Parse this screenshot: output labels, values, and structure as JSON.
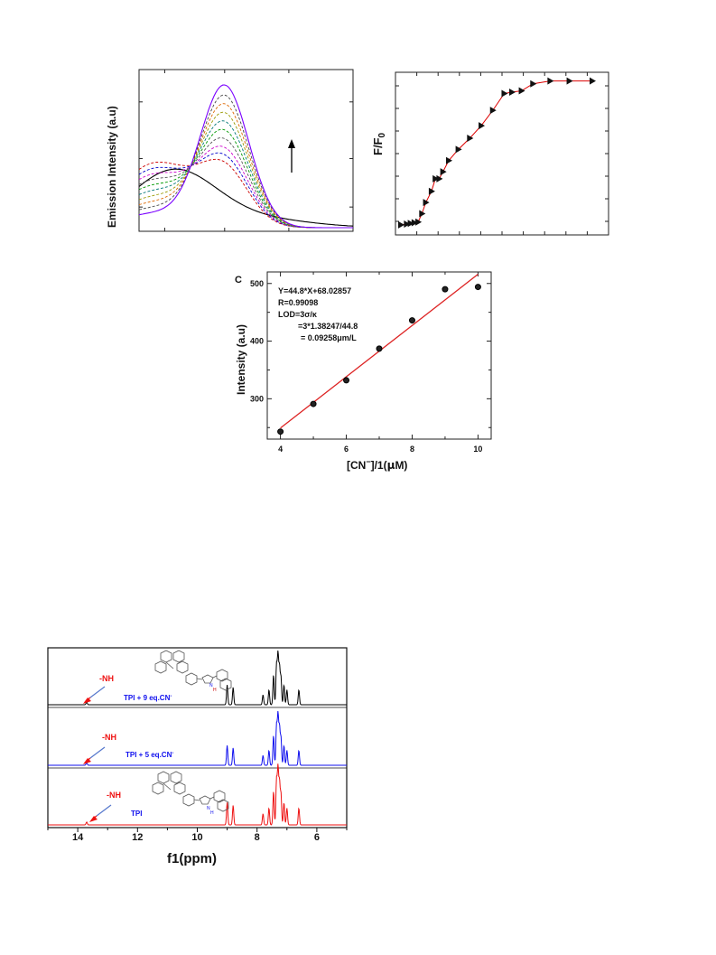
{
  "chart_data": [
    {
      "panel": "emission-spectra",
      "type": "line",
      "ylabel": "Emission Intensity (a.u)",
      "xlabel": "",
      "grid": false,
      "annotation": "upward arrow",
      "series": [
        {
          "style": "solid",
          "color": "#000000",
          "peak_rel": 0.3
        },
        {
          "style": "dashed",
          "color": "#cc0000",
          "peak_rel": 0.38
        },
        {
          "style": "dashed",
          "color": "#0000cc",
          "peak_rel": 0.44
        },
        {
          "style": "dashed",
          "color": "#cc00cc",
          "peak_rel": 0.5
        },
        {
          "style": "dashed",
          "color": "#555555",
          "peak_rel": 0.57
        },
        {
          "style": "dashed",
          "color": "#009900",
          "peak_rel": 0.64
        },
        {
          "style": "dashed",
          "color": "#007777",
          "peak_rel": 0.71
        },
        {
          "style": "dashed",
          "color": "#999900",
          "peak_rel": 0.78
        },
        {
          "style": "dashed",
          "color": "#dd6600",
          "peak_rel": 0.85
        },
        {
          "style": "dashed",
          "color": "#444444",
          "peak_rel": 0.92
        },
        {
          "style": "solid",
          "color": "#7a00ff",
          "peak_rel": 1.0
        }
      ]
    },
    {
      "panel": "titration",
      "type": "line",
      "ylabel": "F/F",
      "ylabel_sub": "0",
      "xlabel": "",
      "grid": false,
      "marker": "triangle-right",
      "line_color": "#dd0000",
      "points": [
        {
          "x": 0.0,
          "y": 0.04
        },
        {
          "x": 0.03,
          "y": 0.045
        },
        {
          "x": 0.05,
          "y": 0.05
        },
        {
          "x": 0.07,
          "y": 0.055
        },
        {
          "x": 0.09,
          "y": 0.06
        },
        {
          "x": 0.11,
          "y": 0.12
        },
        {
          "x": 0.13,
          "y": 0.2
        },
        {
          "x": 0.16,
          "y": 0.28
        },
        {
          "x": 0.18,
          "y": 0.37
        },
        {
          "x": 0.2,
          "y": 0.37
        },
        {
          "x": 0.22,
          "y": 0.42
        },
        {
          "x": 0.25,
          "y": 0.5
        },
        {
          "x": 0.3,
          "y": 0.58
        },
        {
          "x": 0.36,
          "y": 0.66
        },
        {
          "x": 0.42,
          "y": 0.75
        },
        {
          "x": 0.48,
          "y": 0.86
        },
        {
          "x": 0.54,
          "y": 0.98
        },
        {
          "x": 0.58,
          "y": 0.99
        },
        {
          "x": 0.63,
          "y": 1.0
        },
        {
          "x": 0.69,
          "y": 1.05
        },
        {
          "x": 0.78,
          "y": 1.07
        },
        {
          "x": 0.88,
          "y": 1.07
        },
        {
          "x": 1.0,
          "y": 1.07
        }
      ]
    },
    {
      "panel": "calibration",
      "type": "scatter",
      "panel_label": "C",
      "xlabel_parts": [
        "[CN",
        "−",
        "]/1(",
        "μ",
        "M)"
      ],
      "ylabel": "Intensity (a.u)",
      "xlim": [
        3.6,
        10.4
      ],
      "ylim": [
        230,
        520
      ],
      "xticks": [
        "4",
        "6",
        "8",
        "10"
      ],
      "yticks": [
        "300",
        "400",
        "500"
      ],
      "x": [
        4,
        5,
        6,
        7,
        8,
        9,
        10
      ],
      "y": [
        243,
        291,
        332,
        387,
        436,
        490,
        494
      ],
      "fit": {
        "slope": 44.8,
        "intercept": 68.02857,
        "color": "#dd2222"
      },
      "annotation_lines": [
        "Y=44.8*X+68.02857",
        "R=0.99098",
        "LOD=3σ/κ",
        "=3*1.38247/44.8",
        "= 0.09258μm/L"
      ]
    },
    {
      "panel": "nmr",
      "type": "line",
      "xlabel": "f1(ppm)",
      "xlim": [
        15,
        5
      ],
      "xticks": [
        "14",
        "12",
        "10",
        "8",
        "6"
      ],
      "grid": false,
      "series": [
        {
          "name": "TPI + 9 eq.CN",
          "name_sup": "-",
          "color": "#000000",
          "nh_label": "-NH"
        },
        {
          "name": "TPI + 5 eq.CN",
          "name_sup": "-",
          "color": "#1010ee",
          "nh_label": "-NH"
        },
        {
          "name": "TPI",
          "name_sup": "",
          "color": "#ee1111",
          "nh_label": "-NH"
        }
      ],
      "peaks_ppm": [
        13.7,
        9.0,
        8.8,
        7.8,
        7.6,
        7.45,
        7.35,
        7.3,
        7.25,
        7.2,
        7.1,
        7.0,
        6.6
      ],
      "peak_heights": [
        0.05,
        0.4,
        0.35,
        0.2,
        0.3,
        0.6,
        0.8,
        1.0,
        0.75,
        0.55,
        0.4,
        0.3,
        0.3
      ],
      "inset_atom_labels": [
        "N",
        "H"
      ]
    }
  ]
}
